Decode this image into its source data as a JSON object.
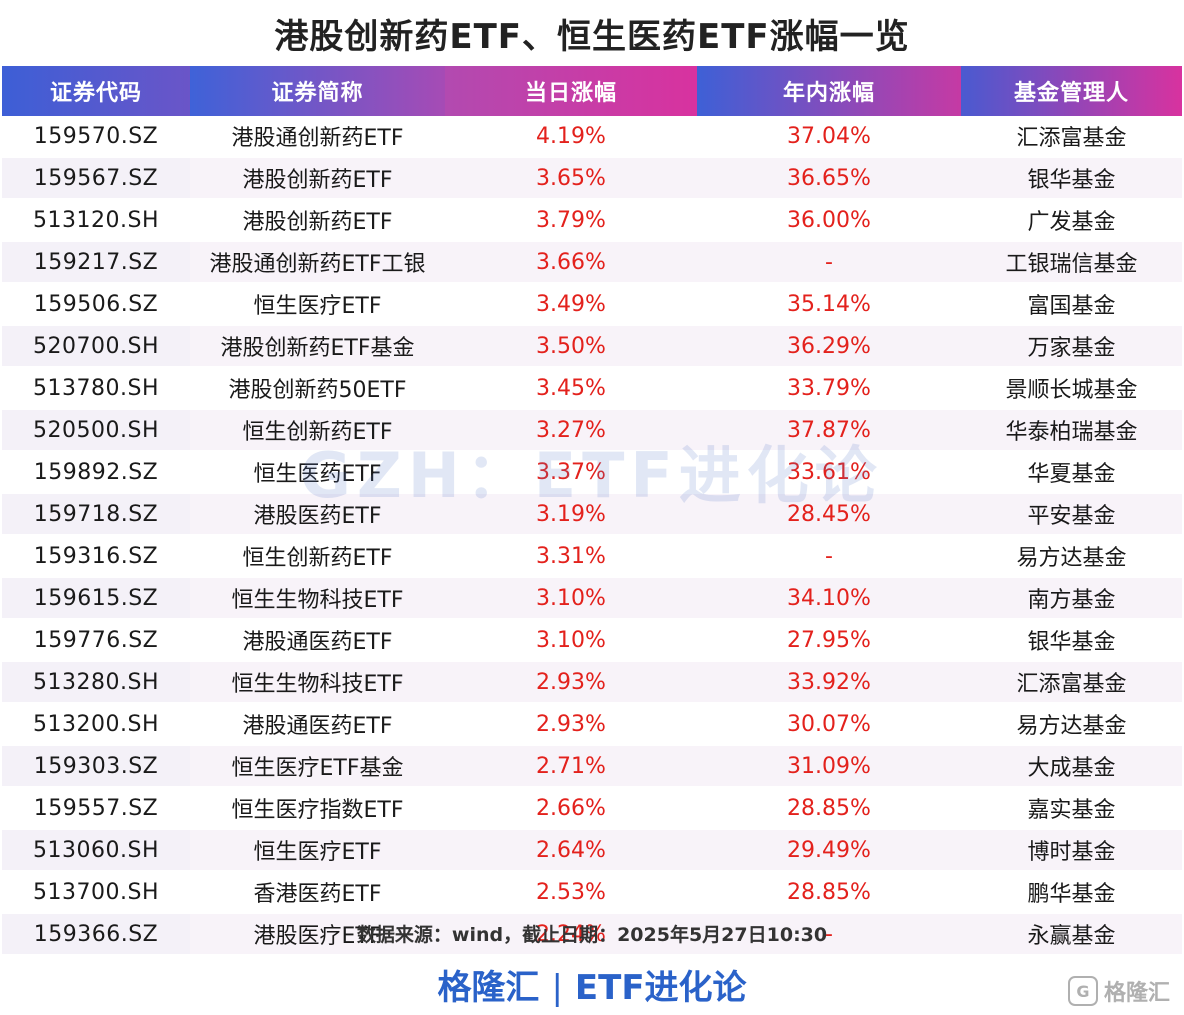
{
  "title": "港股创新药ETF、恒生医药ETF涨幅一览",
  "table": {
    "headers": [
      "证券代码",
      "证券简称",
      "当日涨幅",
      "年内涨幅",
      "基金管理人"
    ],
    "rows": [
      [
        "159570.SZ",
        "港股通创新药ETF",
        "4.19%",
        "37.04%",
        "汇添富基金"
      ],
      [
        "159567.SZ",
        "港股创新药ETF",
        "3.65%",
        "36.65%",
        "银华基金"
      ],
      [
        "513120.SH",
        "港股创新药ETF",
        "3.79%",
        "36.00%",
        "广发基金"
      ],
      [
        "159217.SZ",
        "港股通创新药ETF工银",
        "3.66%",
        "-",
        "工银瑞信基金"
      ],
      [
        "159506.SZ",
        "恒生医疗ETF",
        "3.49%",
        "35.14%",
        "富国基金"
      ],
      [
        "520700.SH",
        "港股创新药ETF基金",
        "3.50%",
        "36.29%",
        "万家基金"
      ],
      [
        "513780.SH",
        "港股创新药50ETF",
        "3.45%",
        "33.79%",
        "景顺长城基金"
      ],
      [
        "520500.SH",
        "恒生创新药ETF",
        "3.27%",
        "37.87%",
        "华泰柏瑞基金"
      ],
      [
        "159892.SZ",
        "恒生医药ETF",
        "3.37%",
        "33.61%",
        "华夏基金"
      ],
      [
        "159718.SZ",
        "港股医药ETF",
        "3.19%",
        "28.45%",
        "平安基金"
      ],
      [
        "159316.SZ",
        "恒生创新药ETF",
        "3.31%",
        "-",
        "易方达基金"
      ],
      [
        "159615.SZ",
        "恒生生物科技ETF",
        "3.10%",
        "34.10%",
        "南方基金"
      ],
      [
        "159776.SZ",
        "港股通医药ETF",
        "3.10%",
        "27.95%",
        "银华基金"
      ],
      [
        "513280.SH",
        "恒生生物科技ETF",
        "2.93%",
        "33.92%",
        "汇添富基金"
      ],
      [
        "513200.SH",
        "港股通医药ETF",
        "2.93%",
        "30.07%",
        "易方达基金"
      ],
      [
        "159303.SZ",
        "恒生医疗ETF基金",
        "2.71%",
        "31.09%",
        "大成基金"
      ],
      [
        "159557.SZ",
        "恒生医疗指数ETF",
        "2.66%",
        "28.85%",
        "嘉实基金"
      ],
      [
        "513060.SH",
        "恒生医疗ETF",
        "2.64%",
        "29.49%",
        "博时基金"
      ],
      [
        "513700.SH",
        "香港医药ETF",
        "2.53%",
        "28.85%",
        "鹏华基金"
      ],
      [
        "159366.SZ",
        "港股医疗ETF",
        "2.24%",
        "-",
        "永赢基金"
      ]
    ]
  },
  "watermark": "GZH：ETF进化论",
  "source": "数据来源：wind，截止日期：2025年5月27日10:30",
  "brand": {
    "left": "格隆汇",
    "separator": "|",
    "right": "ETF进化论"
  },
  "corner_logo": {
    "glyph": "G",
    "text": "格隆汇"
  },
  "colors": {
    "positive": "#e3211c",
    "brand": "#2a62c9",
    "header_blue": "#3d5fd6",
    "header_magenta": "#d8329f"
  }
}
